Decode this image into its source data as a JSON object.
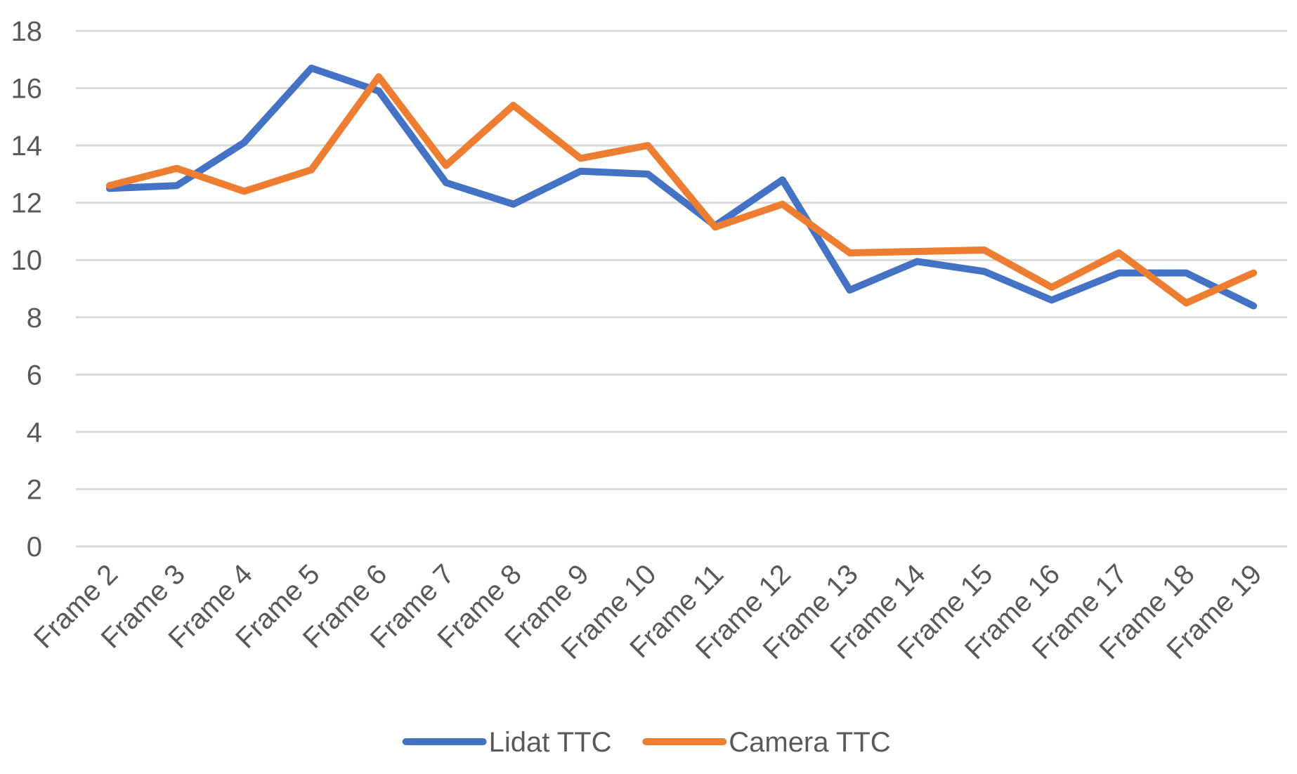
{
  "chart_data": {
    "type": "line",
    "title": "",
    "xlabel": "",
    "ylabel": "",
    "categories": [
      "Frame 2",
      "Frame 3",
      "Frame 4",
      "Frame 5",
      "Frame 6",
      "Frame 7",
      "Frame 8",
      "Frame 9",
      "Frame 10",
      "Frame 11",
      "Frame 12",
      "Frame 13",
      "Frame 14",
      "Frame 15",
      "Frame 16",
      "Frame 17",
      "Frame 18",
      "Frame 19"
    ],
    "ylim": [
      0,
      18
    ],
    "yticks": [
      "0",
      "2",
      "4",
      "6",
      "8",
      "10",
      "12",
      "14",
      "16",
      "18"
    ],
    "grid": true,
    "legend_position": "bottom",
    "series": [
      {
        "name": "Lidat TTC",
        "color": "#4472c4",
        "values": [
          12.5,
          12.6,
          14.1,
          16.7,
          15.9,
          12.7,
          11.95,
          13.1,
          13.0,
          11.2,
          12.8,
          8.95,
          9.95,
          9.6,
          8.6,
          9.55,
          9.55,
          8.4
        ]
      },
      {
        "name": "Camera TTC",
        "color": "#ed7d31",
        "values": [
          12.6,
          13.2,
          12.4,
          13.15,
          16.4,
          13.3,
          15.4,
          13.55,
          14.0,
          11.15,
          11.95,
          10.25,
          10.3,
          10.35,
          9.05,
          10.25,
          8.5,
          9.55
        ]
      }
    ]
  }
}
